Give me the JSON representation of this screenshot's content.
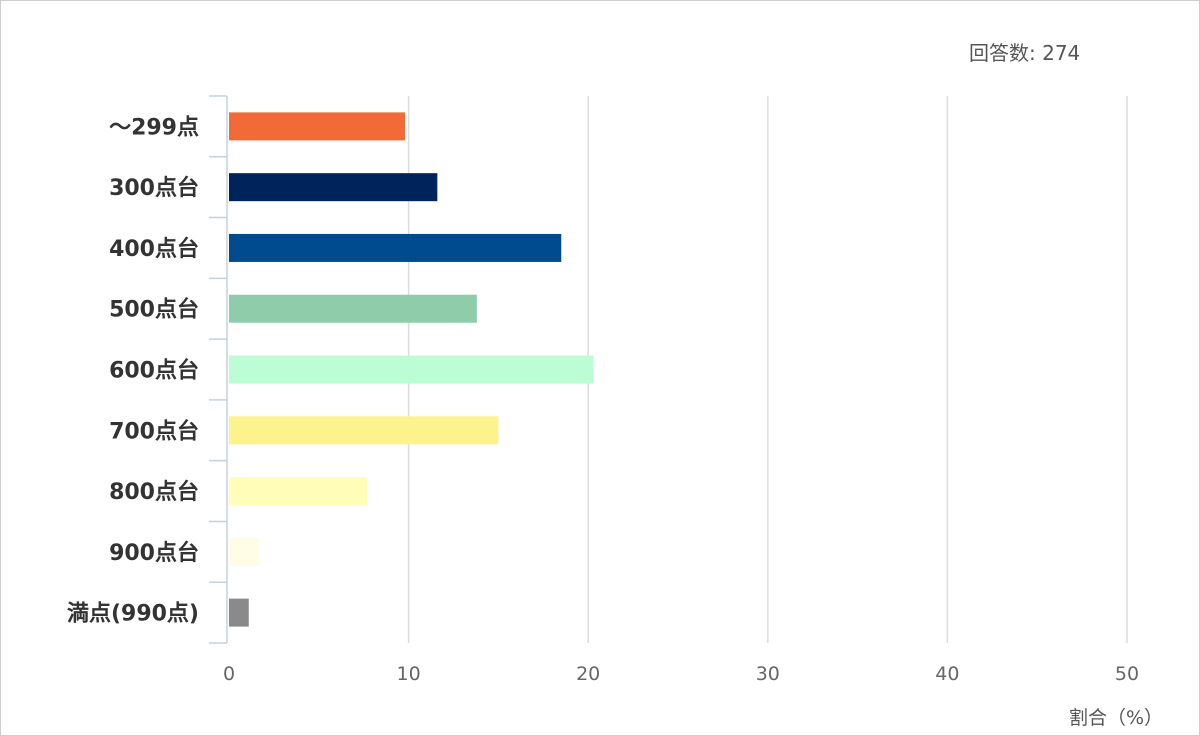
{
  "response_count": "回答数: 274",
  "chart_data": {
    "type": "bar",
    "orientation": "horizontal",
    "categories": [
      "～299点",
      "300点台",
      "400点台",
      "500点台",
      "600点台",
      "700点台",
      "800点台",
      "900点台",
      "満点(990点)"
    ],
    "values": [
      9.8,
      11.6,
      18.5,
      13.8,
      20.3,
      15.0,
      7.7,
      1.7,
      1.1
    ],
    "colors": [
      "#f26a35",
      "#00235b",
      "#004a8f",
      "#8fccaa",
      "#bdfdd6",
      "#fdf38c",
      "#fffdb8",
      "#fffde6",
      "#8a8a8a"
    ],
    "xlabel": "割合（%）",
    "xlim": [
      0,
      50
    ],
    "xticks": [
      0,
      10,
      20,
      30,
      40,
      50
    ],
    "grid": true
  }
}
